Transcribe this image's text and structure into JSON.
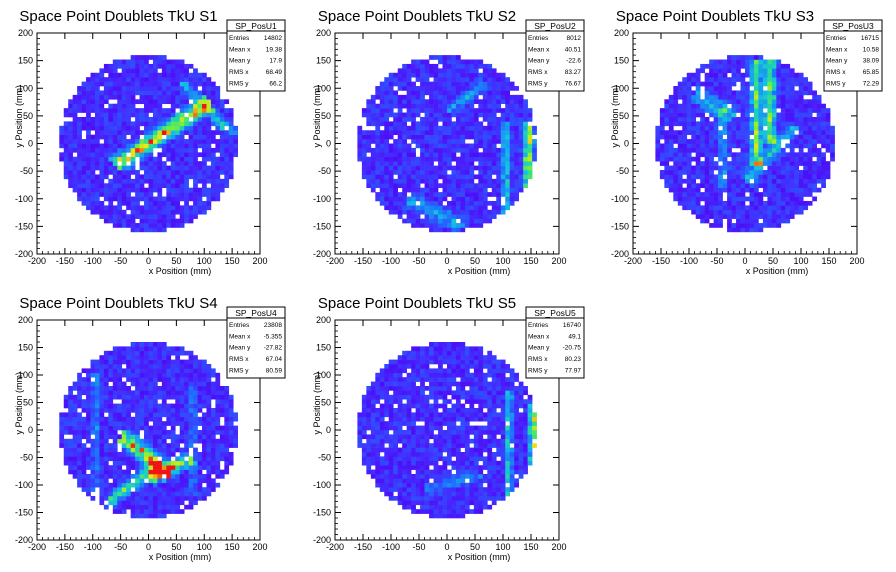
{
  "chart_data": [
    {
      "type": "heatmap",
      "title": "Space Point Doublets TkU S1",
      "xlabel": "x Position (mm)",
      "ylabel": "y Position (mm)",
      "xlim": [
        -200,
        200
      ],
      "ylim": [
        -200,
        200
      ],
      "ticks": [
        -200,
        -150,
        -100,
        -50,
        0,
        50,
        100,
        150,
        200
      ],
      "stats": {
        "name": "SP_PosU1",
        "rows": [
          {
            "label": "Entries",
            "value": "14802"
          },
          {
            "label": "Mean x",
            "value": "19.38"
          },
          {
            "label": "Mean y",
            "value": "17.9"
          },
          {
            "label": "RMS x",
            "value": "68.49"
          },
          {
            "label": "RMS y",
            "value": "66.2"
          }
        ]
      }
    },
    {
      "type": "heatmap",
      "title": "Space Point Doublets TkU S2",
      "xlabel": "x Position (mm)",
      "ylabel": "y Position (mm)",
      "xlim": [
        -200,
        200
      ],
      "ylim": [
        -200,
        200
      ],
      "ticks": [
        -200,
        -150,
        -100,
        -50,
        0,
        50,
        100,
        150,
        200
      ],
      "stats": {
        "name": "SP_PosU2",
        "rows": [
          {
            "label": "Entries",
            "value": "8012"
          },
          {
            "label": "Mean x",
            "value": "40.51"
          },
          {
            "label": "Mean y",
            "value": "-22.6"
          },
          {
            "label": "RMS x",
            "value": "83.27"
          },
          {
            "label": "RMS y",
            "value": "76.67"
          }
        ]
      }
    },
    {
      "type": "heatmap",
      "title": "Space Point Doublets TkU S3",
      "xlabel": "x Position (mm)",
      "ylabel": "y Position (mm)",
      "xlim": [
        -200,
        200
      ],
      "ylim": [
        -200,
        200
      ],
      "ticks": [
        -200,
        -150,
        -100,
        -50,
        0,
        50,
        100,
        150,
        200
      ],
      "stats": {
        "name": "SP_PosU3",
        "rows": [
          {
            "label": "Entries",
            "value": "16715"
          },
          {
            "label": "Mean x",
            "value": "10.58"
          },
          {
            "label": "Mean y",
            "value": "38.09"
          },
          {
            "label": "RMS x",
            "value": "65.85"
          },
          {
            "label": "RMS y",
            "value": "72.29"
          }
        ]
      }
    },
    {
      "type": "heatmap",
      "title": "Space Point Doublets TkU S4",
      "xlabel": "x Position (mm)",
      "ylabel": "y Position (mm)",
      "xlim": [
        -200,
        200
      ],
      "ylim": [
        -200,
        200
      ],
      "ticks": [
        -200,
        -150,
        -100,
        -50,
        0,
        50,
        100,
        150,
        200
      ],
      "stats": {
        "name": "SP_PosU4",
        "rows": [
          {
            "label": "Entries",
            "value": "23808"
          },
          {
            "label": "Mean x",
            "value": "-5.355"
          },
          {
            "label": "Mean y",
            "value": "-27.82"
          },
          {
            "label": "RMS x",
            "value": "67.04"
          },
          {
            "label": "RMS y",
            "value": "80.59"
          }
        ]
      }
    },
    {
      "type": "heatmap",
      "title": "Space Point Doublets TkU S5",
      "xlabel": "x Position (mm)",
      "ylabel": "y Position (mm)",
      "xlim": [
        -200,
        200
      ],
      "ylim": [
        -200,
        200
      ],
      "ticks": [
        -200,
        -150,
        -100,
        -50,
        0,
        50,
        100,
        150,
        200
      ],
      "stats": {
        "name": "SP_PosU5",
        "rows": [
          {
            "label": "Entries",
            "value": "16740"
          },
          {
            "label": "Mean x",
            "value": "49.1"
          },
          {
            "label": "Mean y",
            "value": "-20.75"
          },
          {
            "label": "RMS x",
            "value": "80.23"
          },
          {
            "label": "RMS y",
            "value": "77.97"
          }
        ]
      }
    }
  ]
}
